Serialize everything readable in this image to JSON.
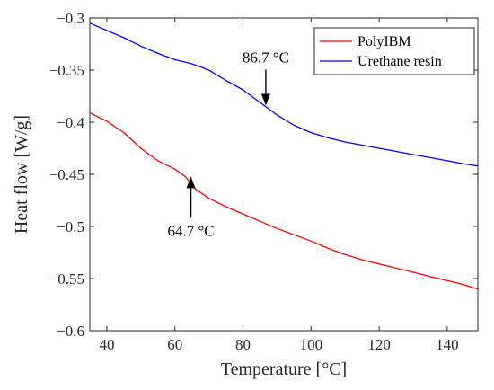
{
  "chart_data": {
    "type": "line",
    "title": "",
    "xlabel": "Temperature [°C]",
    "ylabel": "Heat flow [W/g]",
    "xlim": [
      35,
      149
    ],
    "ylim": [
      -0.6,
      -0.3
    ],
    "x_ticks": [
      40,
      60,
      80,
      100,
      120,
      140
    ],
    "y_ticks": [
      -0.6,
      -0.55,
      -0.5,
      -0.45,
      -0.4,
      -0.35,
      -0.3
    ],
    "x_tick_labels": [
      "40",
      "60",
      "80",
      "100",
      "120",
      "140"
    ],
    "y_tick_labels": [
      "−0.6",
      "−0.55",
      "−0.5",
      "−0.45",
      "−0.4",
      "−0.35",
      "−0.3"
    ],
    "grid": false,
    "legend": {
      "placement": "top-right"
    },
    "series": [
      {
        "name": "PolyIBM",
        "color": "#ff0000",
        "points": [
          [
            35,
            -0.391
          ],
          [
            40,
            -0.399
          ],
          [
            45,
            -0.41
          ],
          [
            50,
            -0.425
          ],
          [
            55,
            -0.437
          ],
          [
            60,
            -0.445
          ],
          [
            63,
            -0.452
          ],
          [
            66,
            -0.464
          ],
          [
            70,
            -0.473
          ],
          [
            75,
            -0.481
          ],
          [
            80,
            -0.488
          ],
          [
            85,
            -0.495
          ],
          [
            90,
            -0.502
          ],
          [
            95,
            -0.508
          ],
          [
            100,
            -0.514
          ],
          [
            105,
            -0.521
          ],
          [
            110,
            -0.527
          ],
          [
            115,
            -0.532
          ],
          [
            120,
            -0.536
          ],
          [
            125,
            -0.54
          ],
          [
            130,
            -0.544
          ],
          [
            135,
            -0.548
          ],
          [
            140,
            -0.552
          ],
          [
            145,
            -0.556
          ],
          [
            149,
            -0.56
          ]
        ]
      },
      {
        "name": "Urethane resin",
        "color": "#0000ff",
        "points": [
          [
            35,
            -0.305
          ],
          [
            40,
            -0.312
          ],
          [
            45,
            -0.319
          ],
          [
            50,
            -0.327
          ],
          [
            55,
            -0.334
          ],
          [
            60,
            -0.34
          ],
          [
            65,
            -0.344
          ],
          [
            70,
            -0.35
          ],
          [
            75,
            -0.36
          ],
          [
            80,
            -0.369
          ],
          [
            85,
            -0.381
          ],
          [
            90,
            -0.393
          ],
          [
            95,
            -0.403
          ],
          [
            100,
            -0.41
          ],
          [
            105,
            -0.415
          ],
          [
            110,
            -0.419
          ],
          [
            115,
            -0.422
          ],
          [
            120,
            -0.425
          ],
          [
            125,
            -0.428
          ],
          [
            130,
            -0.431
          ],
          [
            135,
            -0.434
          ],
          [
            140,
            -0.437
          ],
          [
            145,
            -0.44
          ],
          [
            149,
            -0.442
          ]
        ]
      }
    ],
    "annotations": [
      {
        "label": "86.7 °C",
        "x": 86.7,
        "y": -0.384,
        "direction": "down"
      },
      {
        "label": "64.7 °C",
        "x": 64.7,
        "y": -0.452,
        "direction": "up"
      }
    ]
  }
}
